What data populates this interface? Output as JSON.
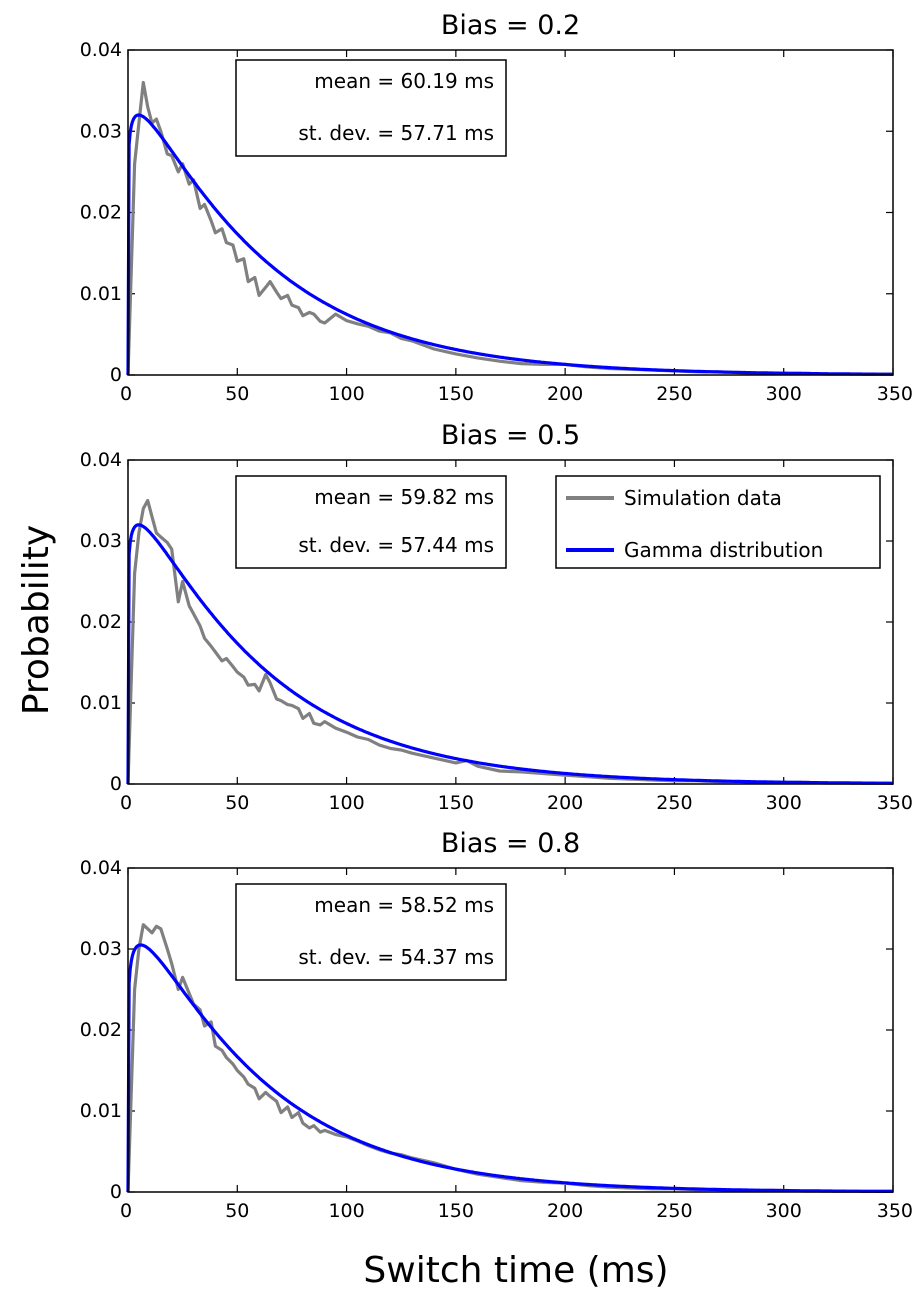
{
  "figure": {
    "ylabel": "Probability",
    "xlabel": "Switch time (ms)"
  },
  "legend": {
    "entries": [
      {
        "label": "Simulation data",
        "color": "#808080"
      },
      {
        "label": "Gamma distribution",
        "color": "#0000ff"
      }
    ]
  },
  "colors": {
    "simulation": "#808080",
    "gamma": "#0000ff",
    "axes": "#000000"
  },
  "chart_data": [
    {
      "type": "line",
      "title": "Bias = 0.2",
      "xlim": [
        0,
        350
      ],
      "ylim": [
        0,
        0.04
      ],
      "x_ticks": [
        "0",
        "50",
        "100",
        "150",
        "200",
        "250",
        "300",
        "350"
      ],
      "y_ticks": [
        "0",
        "0.01",
        "0.02",
        "0.03",
        "0.04"
      ],
      "annotation": {
        "mean": "mean = 60.19 ms",
        "stdev": "st. dev. = 57.71 ms"
      },
      "series": [
        {
          "name": "Simulation data",
          "color": "#808080",
          "x": [
            0,
            3,
            5,
            7,
            9,
            11,
            13,
            15,
            18,
            20,
            23,
            25,
            28,
            30,
            33,
            35,
            38,
            40,
            43,
            45,
            48,
            50,
            53,
            55,
            58,
            60,
            63,
            65,
            68,
            70,
            73,
            75,
            78,
            80,
            83,
            85,
            88,
            90,
            95,
            100,
            105,
            110,
            115,
            120,
            125,
            130,
            140,
            150,
            160,
            170,
            180,
            190,
            200,
            210,
            220,
            230,
            240,
            250,
            260,
            270,
            280,
            290,
            300,
            310,
            320,
            330,
            340,
            350
          ],
          "y": [
            0,
            0.026,
            0.031,
            0.036,
            0.033,
            0.031,
            0.0315,
            0.03,
            0.0272,
            0.027,
            0.025,
            0.026,
            0.0235,
            0.024,
            0.0205,
            0.021,
            0.019,
            0.0175,
            0.018,
            0.0163,
            0.016,
            0.014,
            0.0143,
            0.0115,
            0.012,
            0.0098,
            0.0108,
            0.0115,
            0.0102,
            0.0094,
            0.0098,
            0.0086,
            0.0083,
            0.0073,
            0.0077,
            0.0075,
            0.0066,
            0.0064,
            0.0075,
            0.0067,
            0.0063,
            0.006,
            0.0054,
            0.0052,
            0.0045,
            0.0042,
            0.0032,
            0.0026,
            0.0021,
            0.0017,
            0.0014,
            0.0013,
            0.0013,
            0.001,
            0.0008,
            0.0007,
            0.0006,
            0.0005,
            0.0004,
            0.0004,
            0.0003,
            0.0002,
            0.0002,
            0.0002,
            0.0001,
            0.0001,
            0.0001,
            0.0001
          ]
        },
        {
          "name": "Gamma distribution",
          "color": "#0000ff",
          "shape": 1.088,
          "scale": 55.3,
          "ymax": 0.032
        }
      ]
    },
    {
      "type": "line",
      "title": "Bias = 0.5",
      "xlim": [
        0,
        350
      ],
      "ylim": [
        0,
        0.04
      ],
      "x_ticks": [
        "0",
        "50",
        "100",
        "150",
        "200",
        "250",
        "300",
        "350"
      ],
      "y_ticks": [
        "0",
        "0.01",
        "0.02",
        "0.03",
        "0.04"
      ],
      "annotation": {
        "mean": "mean  = 59.82 ms",
        "stdev": "st. dev. = 57.44 ms"
      },
      "series": [
        {
          "name": "Simulation data",
          "color": "#808080",
          "x": [
            0,
            3,
            5,
            7,
            9,
            11,
            13,
            15,
            18,
            20,
            23,
            25,
            28,
            30,
            33,
            35,
            38,
            40,
            43,
            45,
            48,
            50,
            53,
            55,
            58,
            60,
            63,
            65,
            68,
            70,
            73,
            75,
            78,
            80,
            83,
            85,
            88,
            90,
            95,
            100,
            105,
            110,
            115,
            120,
            125,
            130,
            140,
            150,
            155,
            160,
            170,
            180,
            190,
            200,
            210,
            220,
            230,
            240,
            250,
            260,
            270,
            280,
            290,
            300,
            310,
            320,
            330,
            340,
            350
          ],
          "y": [
            0,
            0.026,
            0.031,
            0.034,
            0.035,
            0.033,
            0.031,
            0.0305,
            0.0298,
            0.029,
            0.0225,
            0.025,
            0.022,
            0.021,
            0.0195,
            0.018,
            0.017,
            0.0163,
            0.0152,
            0.0155,
            0.0145,
            0.0138,
            0.0132,
            0.0122,
            0.0123,
            0.0115,
            0.0135,
            0.0125,
            0.0105,
            0.0103,
            0.0098,
            0.0097,
            0.0093,
            0.0081,
            0.0087,
            0.0075,
            0.0073,
            0.0077,
            0.0069,
            0.0064,
            0.0058,
            0.0055,
            0.0048,
            0.0044,
            0.0042,
            0.0038,
            0.0032,
            0.0026,
            0.0029,
            0.0022,
            0.0016,
            0.0015,
            0.0013,
            0.0011,
            0.0009,
            0.0007,
            0.0006,
            0.0005,
            0.0004,
            0.0004,
            0.0003,
            0.0003,
            0.0002,
            0.0002,
            0.0002,
            0.0001,
            0.0001,
            0.0001,
            0.0001
          ]
        },
        {
          "name": "Gamma distribution",
          "color": "#0000ff",
          "shape": 1.088,
          "scale": 55.3,
          "ymax": 0.032
        }
      ]
    },
    {
      "type": "line",
      "title": "Bias = 0.8",
      "xlim": [
        0,
        350
      ],
      "ylim": [
        0,
        0.04
      ],
      "x_ticks": [
        "0",
        "50",
        "100",
        "150",
        "200",
        "250",
        "300",
        "350"
      ],
      "y_ticks": [
        "0",
        "0.01",
        "0.02",
        "0.03",
        "0.04"
      ],
      "annotation": {
        "mean": "mean = 58.52 ms",
        "stdev": "st. dev. = 54.37 ms"
      },
      "series": [
        {
          "name": "Simulation data",
          "color": "#808080",
          "x": [
            0,
            3,
            5,
            7,
            9,
            11,
            13,
            15,
            18,
            20,
            23,
            25,
            28,
            30,
            33,
            35,
            38,
            40,
            43,
            45,
            48,
            50,
            53,
            55,
            58,
            60,
            63,
            65,
            68,
            70,
            73,
            75,
            78,
            80,
            83,
            85,
            88,
            90,
            95,
            100,
            105,
            110,
            115,
            120,
            125,
            130,
            140,
            150,
            160,
            170,
            180,
            190,
            200,
            210,
            220,
            230,
            240,
            250,
            260,
            270,
            280,
            290,
            300,
            310,
            320,
            330,
            340,
            350
          ],
          "y": [
            0,
            0.025,
            0.03,
            0.033,
            0.0325,
            0.032,
            0.0328,
            0.0325,
            0.03,
            0.0282,
            0.025,
            0.0265,
            0.0245,
            0.0232,
            0.0225,
            0.0205,
            0.021,
            0.018,
            0.0175,
            0.0166,
            0.0158,
            0.015,
            0.0142,
            0.0133,
            0.0128,
            0.0115,
            0.0123,
            0.0118,
            0.0112,
            0.0098,
            0.0105,
            0.0092,
            0.0098,
            0.0085,
            0.0079,
            0.0082,
            0.0074,
            0.0076,
            0.0071,
            0.0068,
            0.0063,
            0.0057,
            0.0052,
            0.0048,
            0.0046,
            0.0042,
            0.0036,
            0.0028,
            0.0022,
            0.0018,
            0.0014,
            0.0012,
            0.0011,
            0.0008,
            0.0006,
            0.0005,
            0.0004,
            0.0004,
            0.0003,
            0.0003,
            0.0002,
            0.0002,
            0.0002,
            0.0001,
            0.0001,
            0.0001,
            0.0001,
            0.0001
          ]
        },
        {
          "name": "Gamma distribution",
          "color": "#0000ff",
          "shape": 1.11,
          "scale": 52.7,
          "ymax": 0.0305
        }
      ]
    }
  ]
}
